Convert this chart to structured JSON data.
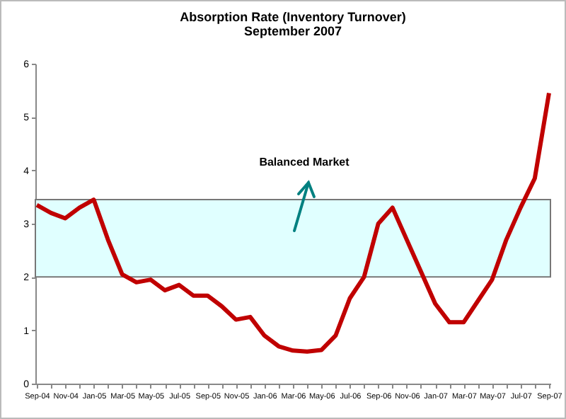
{
  "chart_data": {
    "type": "line",
    "title": "Absorption Rate (Inventory Turnover)",
    "subtitle": "September 2007",
    "categories": [
      "Sep-04",
      null,
      "Nov-04",
      null,
      "Jan-05",
      null,
      "Mar-05",
      null,
      "May-05",
      null,
      "Jul-05",
      null,
      "Sep-05",
      null,
      "Nov-05",
      null,
      "Jan-06",
      null,
      "Mar-06",
      null,
      "May-06",
      null,
      "Jul-06",
      null,
      "Sep-06",
      null,
      "Nov-06",
      null,
      "Jan-07",
      null,
      "Mar-07",
      null,
      "May-07",
      null,
      "Jul-07",
      null,
      "Sep-07"
    ],
    "series": [
      {
        "color": "#c00000",
        "values": [
          3.35,
          3.2,
          3.1,
          3.3,
          3.45,
          2.7,
          2.05,
          1.9,
          1.95,
          1.75,
          1.85,
          1.65,
          1.65,
          1.45,
          1.2,
          1.25,
          0.9,
          0.7,
          0.62,
          0.6,
          0.63,
          0.9,
          1.6,
          2.0,
          3.0,
          3.3,
          2.7,
          2.1,
          1.5,
          1.15,
          1.15,
          1.55,
          1.95,
          2.7,
          3.3,
          3.85,
          5.45
        ]
      }
    ],
    "ylim": [
      0,
      6
    ],
    "yticks": [
      0,
      1,
      2,
      3,
      4,
      5,
      6
    ],
    "grid": false,
    "marker": "none",
    "line_style": "solid",
    "bands": [
      {
        "axis": "y",
        "from": 2,
        "to": 3.45,
        "label": "Balanced Market",
        "color": "#e0ffff"
      }
    ]
  }
}
